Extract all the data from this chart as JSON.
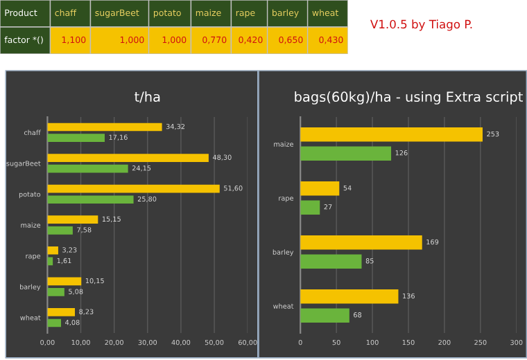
{
  "chart_data": [
    {
      "type": "other",
      "annotations": [
        "Product",
        "chaff",
        "sugarBeet",
        "potato",
        "maize",
        "rape",
        "barley",
        "wheat",
        "factor *()",
        "1,100",
        "1,000",
        "1,000",
        "0,770",
        "0,420",
        "0,650",
        "0,430",
        "V1.0.5 by Tiago P."
      ]
    },
    {
      "type": "bar",
      "orientation": "horizontal",
      "title": "t/ha",
      "categories": [
        "chaff",
        "sugarBeet",
        "potato",
        "maize",
        "rape",
        "barley",
        "wheat"
      ],
      "xlim": [
        0,
        60
      ],
      "xticks": [
        {
          "value": 0,
          "label": "0,00"
        },
        {
          "value": 10,
          "label": "10,00"
        },
        {
          "value": 20,
          "label": "20,00"
        },
        {
          "value": 30,
          "label": "30,00"
        },
        {
          "value": 40,
          "label": "40,00"
        },
        {
          "value": 50,
          "label": "50,00"
        },
        {
          "value": 60,
          "label": "60,00"
        }
      ],
      "grid": "x",
      "legend": false,
      "series": [
        {
          "color": "#f5c200",
          "values": [
            34.32,
            48.3,
            51.6,
            15.15,
            3.23,
            10.15,
            8.23
          ],
          "value_labels": [
            "34,32",
            "48,30",
            "51,60",
            "15,15",
            "3,23",
            "10,15",
            "8,23"
          ]
        },
        {
          "color": "#6ab43c",
          "values": [
            17.16,
            24.15,
            25.8,
            7.58,
            1.61,
            5.08,
            4.08
          ],
          "value_labels": [
            "17,16",
            "24,15",
            "25,80",
            "7,58",
            "1,61",
            "5,08",
            "4,08"
          ]
        }
      ]
    },
    {
      "type": "bar",
      "orientation": "horizontal",
      "title": "bags(60kg)/ha - using Extra script",
      "categories": [
        "maize",
        "rape",
        "barley",
        "wheat"
      ],
      "xlim": [
        0,
        300
      ],
      "xticks": [
        0,
        50,
        100,
        150,
        200,
        250,
        300
      ],
      "grid": "x",
      "legend": false,
      "data_labels": true,
      "series": [
        {
          "color": "#f5c200",
          "values": [
            253,
            54,
            169,
            136
          ]
        },
        {
          "color": "#6ab43c",
          "values": [
            126,
            27,
            85,
            68
          ]
        }
      ]
    }
  ]
}
